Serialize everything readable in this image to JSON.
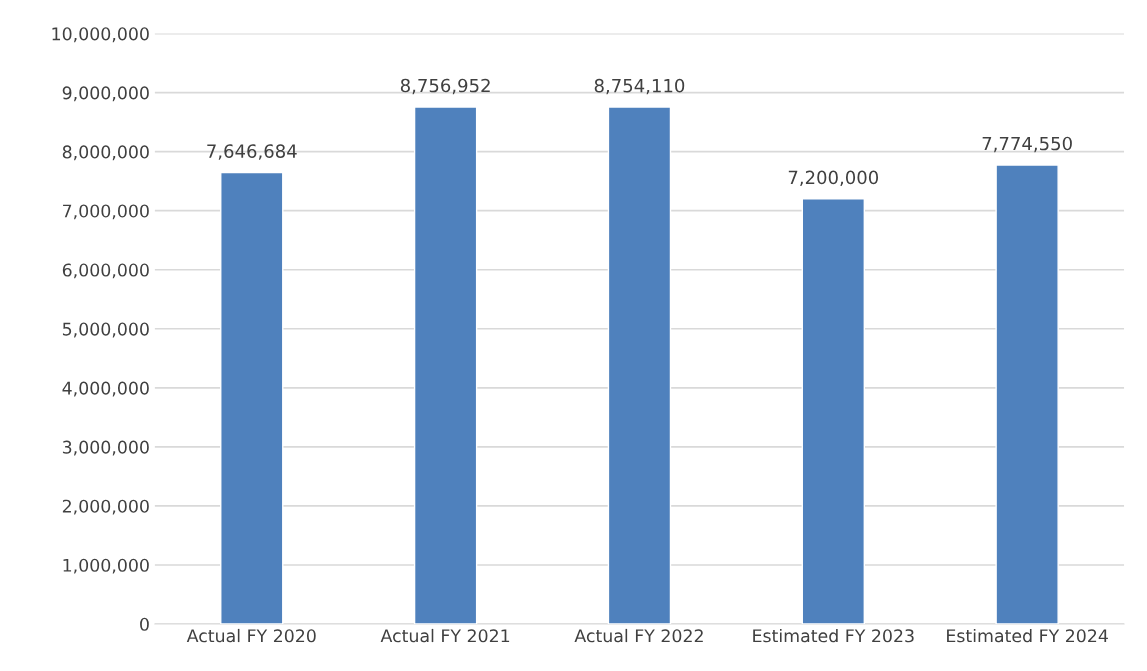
{
  "chart_data": {
    "type": "bar",
    "categories": [
      "Actual FY 2020",
      "Actual FY 2021",
      "Actual FY 2022",
      "Estimated FY 2023",
      "Estimated FY 2024"
    ],
    "values": [
      7646684,
      8756952,
      8754110,
      7200000,
      7774550
    ],
    "color": "#4f81bd",
    "value_labels": [
      "7,646,684",
      "8,756,952",
      "8,754,110",
      "7,200,000",
      "7,774,550"
    ],
    "ylim": [
      0,
      10000000
    ],
    "yticks": [
      {
        "value": 0,
        "label": "0"
      },
      {
        "value": 1000000,
        "label": "1,000,000"
      },
      {
        "value": 2000000,
        "label": "2,000,000"
      },
      {
        "value": 3000000,
        "label": "3,000,000"
      },
      {
        "value": 4000000,
        "label": "4,000,000"
      },
      {
        "value": 5000000,
        "label": "5,000,000"
      },
      {
        "value": 6000000,
        "label": "6,000,000"
      },
      {
        "value": 7000000,
        "label": "7,000,000"
      },
      {
        "value": 8000000,
        "label": "8,000,000"
      },
      {
        "value": 9000000,
        "label": "9,000,000"
      },
      {
        "value": 10000000,
        "label": "10,000,000"
      }
    ],
    "grid": "y"
  }
}
